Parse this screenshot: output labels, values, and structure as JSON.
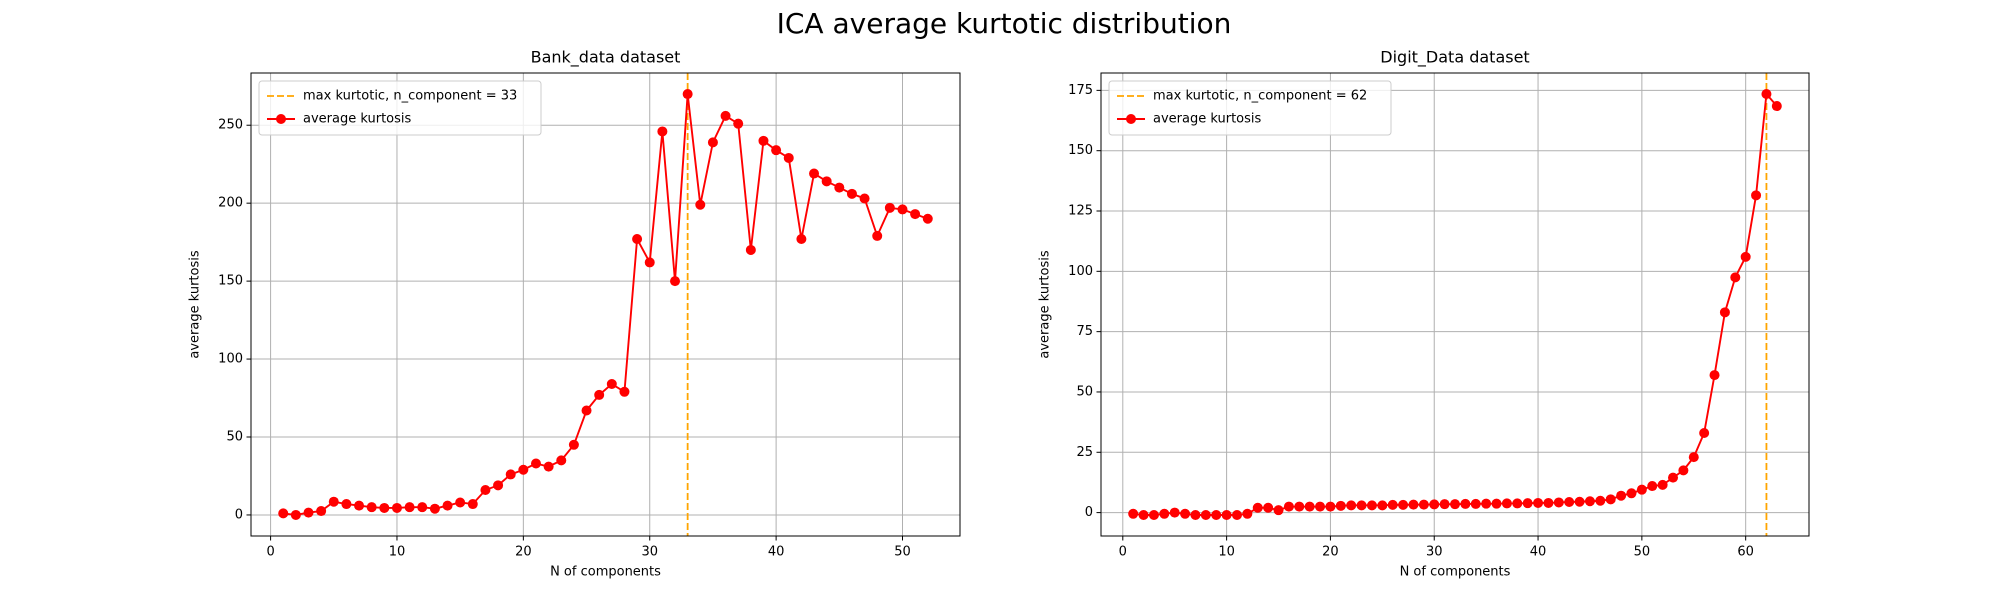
{
  "title": "ICA average kurtotic distribution",
  "chart_data": [
    {
      "type": "line",
      "title": "Bank_data dataset",
      "xlabel": "N of components",
      "ylabel": "average kurtosis",
      "x": [
        1,
        2,
        3,
        4,
        5,
        6,
        7,
        8,
        9,
        10,
        11,
        12,
        13,
        14,
        15,
        16,
        17,
        18,
        19,
        20,
        21,
        22,
        23,
        24,
        25,
        26,
        27,
        28,
        29,
        30,
        31,
        32,
        33,
        34,
        35,
        36,
        37,
        38,
        39,
        40,
        41,
        42,
        43,
        44,
        45,
        46,
        47,
        48,
        49,
        50,
        51,
        52
      ],
      "series": [
        {
          "name": "average kurtosis",
          "color": "#ff0000",
          "marker": "o",
          "values": [
            1,
            0,
            1.5,
            2.5,
            8.5,
            7,
            6,
            5,
            4.5,
            4.5,
            5,
            5,
            4,
            6,
            8,
            7,
            16,
            19,
            26,
            29,
            33,
            31,
            35,
            45,
            67,
            77,
            84,
            79,
            177,
            162,
            246,
            150,
            270,
            199,
            239,
            256,
            251,
            170,
            240,
            234,
            229,
            177,
            219,
            214,
            210,
            206,
            203,
            179,
            197,
            196,
            193,
            190
          ]
        }
      ],
      "vline": {
        "x": 33,
        "label": "max kurtotic, n_component = 33",
        "color": "#ffa500"
      },
      "xlim": [
        -1.55,
        54.55
      ],
      "ylim": [
        -13.5,
        283.5
      ],
      "xticks": [
        0,
        10,
        20,
        30,
        40,
        50
      ],
      "yticks": [
        0,
        50,
        100,
        150,
        200,
        250
      ],
      "grid": true,
      "legend": "upper left"
    },
    {
      "type": "line",
      "title": "Digit_Data dataset",
      "xlabel": "N of components",
      "ylabel": "average kurtosis",
      "x": [
        1,
        2,
        3,
        4,
        5,
        6,
        7,
        8,
        9,
        10,
        11,
        12,
        13,
        14,
        15,
        16,
        17,
        18,
        19,
        20,
        21,
        22,
        23,
        24,
        25,
        26,
        27,
        28,
        29,
        30,
        31,
        32,
        33,
        34,
        35,
        36,
        37,
        38,
        39,
        40,
        41,
        42,
        43,
        44,
        45,
        46,
        47,
        48,
        49,
        50,
        51,
        52,
        53,
        54,
        55,
        56,
        57,
        58,
        59,
        60,
        61,
        62,
        63
      ],
      "series": [
        {
          "name": "average kurtosis",
          "color": "#ff0000",
          "marker": "o",
          "values": [
            -0.5,
            -1,
            -1,
            -0.5,
            0,
            -0.5,
            -1,
            -1,
            -1,
            -1,
            -1,
            -0.5,
            2,
            2,
            1,
            2.5,
            2.5,
            2.5,
            2.5,
            2.5,
            2.8,
            3,
            3,
            3,
            3,
            3.2,
            3.2,
            3.3,
            3.3,
            3.4,
            3.5,
            3.5,
            3.6,
            3.6,
            3.7,
            3.7,
            3.8,
            3.8,
            3.9,
            4,
            4,
            4.2,
            4.4,
            4.5,
            4.7,
            4.9,
            5.5,
            7,
            8,
            9.5,
            11,
            11.5,
            14.5,
            17.5,
            23,
            33,
            57,
            83,
            97.5,
            106,
            131.5,
            173.5,
            168.5
          ]
        }
      ],
      "vline": {
        "x": 62,
        "label": "max kurtotic, n_component = 62",
        "color": "#ffa500"
      },
      "xlim": [
        -2.1,
        66.1
      ],
      "ylim": [
        -9.7,
        182.2
      ],
      "xticks": [
        0,
        10,
        20,
        30,
        40,
        50,
        60
      ],
      "yticks": [
        0,
        25,
        50,
        75,
        100,
        125,
        150,
        175
      ],
      "grid": true,
      "legend": "upper left"
    }
  ]
}
